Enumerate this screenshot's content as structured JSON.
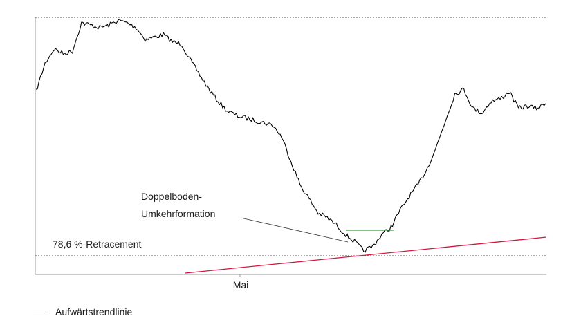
{
  "chart_data": {
    "type": "line",
    "title": "",
    "xlabel": "",
    "ylabel": "",
    "x_tick_labels": [
      "Mai"
    ],
    "grid": false,
    "y_scale": "relative (no axis values printed)",
    "series": [
      {
        "name": "",
        "color": "#000000",
        "values": [
          69,
          81,
          87,
          85,
          86,
          98,
          97,
          96,
          97,
          99,
          98,
          96,
          91,
          92,
          93,
          90,
          89,
          82,
          76,
          70,
          65,
          61,
          59,
          58,
          57,
          56,
          55,
          50,
          40,
          30,
          24,
          18,
          16,
          13,
          9,
          6,
          2,
          4,
          9,
          12,
          19,
          25,
          30,
          37,
          46,
          57,
          68,
          70,
          62,
          60,
          65,
          66,
          69,
          62,
          63,
          62,
          64
        ]
      }
    ],
    "annotations": {
      "retracement_label": "78,6 %-Retracement",
      "pattern_label_line1": "Doppelboden-",
      "pattern_label_line2": "Umkehrformation",
      "x_tick": "Mai"
    },
    "trendline": {
      "name": "Aufwärtstrendlinie",
      "color": "#d9143f"
    },
    "neckline_color": "#3a9a3a",
    "reference_line_color": "#555555"
  },
  "legend": {
    "items": [
      {
        "label": "Aufwärtstrendlinie",
        "color": "#d9143f"
      }
    ]
  }
}
